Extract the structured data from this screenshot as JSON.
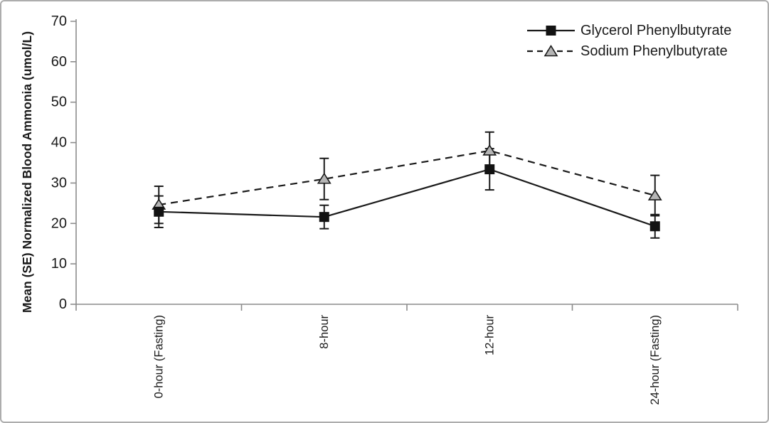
{
  "figure": {
    "background": "#ffffff",
    "border_color": "#adadad"
  },
  "chart_data": {
    "type": "line",
    "title": "",
    "xlabel": "",
    "ylabel": "Mean (SE) Normalized Blood Ammonia (umol/L)",
    "categories": [
      "0-hour (Fasting)",
      "8-hour",
      "12-hour",
      "24-hour (Fasting)"
    ],
    "ylim": [
      0,
      70
    ],
    "yticks": [
      0,
      10,
      20,
      30,
      40,
      50,
      60,
      70
    ],
    "grid": false,
    "legend_position": "top-right",
    "axis_color": "#8c8c8c",
    "text_color": "#1a1a1a",
    "error_bar_type": "SE",
    "series": [
      {
        "name": "Glycerol Phenylbutyrate",
        "values": [
          22.9,
          21.6,
          33.4,
          19.3
        ],
        "se": [
          3.9,
          2.9,
          5.1,
          2.9
        ],
        "line_style": "solid",
        "marker": "square",
        "line_color": "#1a1a1a",
        "marker_fill": "#121212",
        "marker_stroke": "#121212"
      },
      {
        "name": "Sodium Phenylbutyrate",
        "values": [
          24.6,
          31.0,
          38.0,
          26.9
        ],
        "se": [
          4.6,
          5.1,
          4.6,
          5.0
        ],
        "line_style": "dashed",
        "marker": "triangle",
        "line_color": "#1a1a1a",
        "marker_fill": "#b5b5b5",
        "marker_stroke": "#1a1a1a"
      }
    ]
  }
}
